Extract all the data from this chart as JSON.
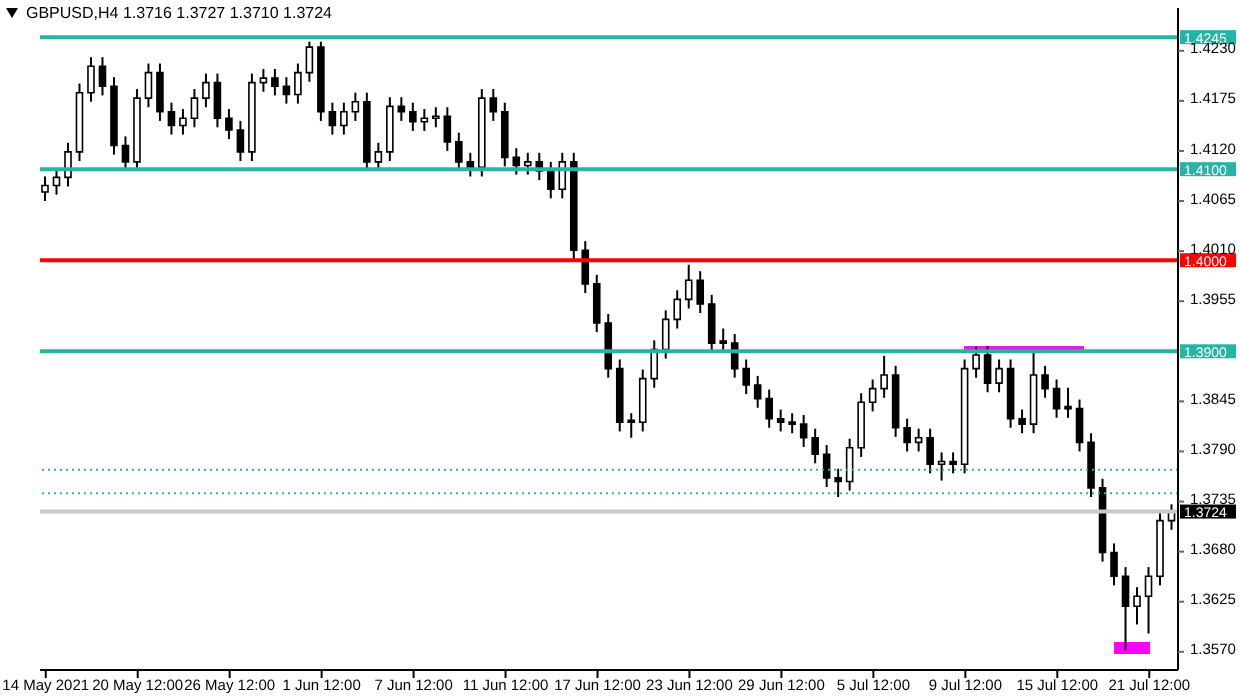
{
  "chart_data": {
    "type": "candlestick",
    "title": "GBPUSD,H4  1.3716 1.3727 1.3710 1.3724",
    "color": "#000000",
    "categories": [
      "14 May 2021",
      null,
      null,
      null,
      null,
      null,
      null,
      null,
      "20 May 12:00",
      null,
      null,
      null,
      null,
      null,
      null,
      null,
      "26 May 12:00",
      null,
      null,
      null,
      null,
      null,
      null,
      null,
      "1 Jun 12:00",
      null,
      null,
      null,
      null,
      null,
      null,
      null,
      "7 Jun 12:00",
      null,
      null,
      null,
      null,
      null,
      null,
      null,
      "11 Jun 12:00",
      null,
      null,
      null,
      null,
      null,
      null,
      null,
      "17 Jun 12:00",
      null,
      null,
      null,
      null,
      null,
      null,
      null,
      "23 Jun 12:00",
      null,
      null,
      null,
      null,
      null,
      null,
      null,
      "29 Jun 12:00",
      null,
      null,
      null,
      null,
      null,
      null,
      null,
      "5 Jul 12:00",
      null,
      null,
      null,
      null,
      null,
      null,
      null,
      "9 Jul 12:00",
      null,
      null,
      null,
      null,
      null,
      null,
      null,
      "15 Jul 12:00",
      null,
      null,
      null,
      null,
      null,
      null,
      null,
      "21 Jul 12:00",
      null,
      null
    ],
    "ohlc": [
      [
        1.4075,
        1.4092,
        1.4065,
        1.4082
      ],
      [
        1.4082,
        1.4101,
        1.4072,
        1.4091
      ],
      [
        1.4091,
        1.4129,
        1.4081,
        1.4119
      ],
      [
        1.4119,
        1.4194,
        1.4109,
        1.4184
      ],
      [
        1.4184,
        1.4223,
        1.4174,
        1.4213
      ],
      [
        1.4213,
        1.4223,
        1.4181,
        1.4191
      ],
      [
        1.4191,
        1.4201,
        1.4116,
        1.4126
      ],
      [
        1.4126,
        1.4136,
        1.4098,
        1.4108
      ],
      [
        1.4108,
        1.4188,
        1.4098,
        1.4178
      ],
      [
        1.4178,
        1.4216,
        1.4168,
        1.4206
      ],
      [
        1.4206,
        1.4216,
        1.4153,
        1.4163
      ],
      [
        1.4163,
        1.4173,
        1.4138,
        1.4148
      ],
      [
        1.4148,
        1.4166,
        1.4138,
        1.4156
      ],
      [
        1.4156,
        1.4188,
        1.4146,
        1.4178
      ],
      [
        1.4178,
        1.4205,
        1.4168,
        1.4195
      ],
      [
        1.4195,
        1.4205,
        1.4146,
        1.4156
      ],
      [
        1.4156,
        1.4166,
        1.4133,
        1.4143
      ],
      [
        1.4143,
        1.4153,
        1.4109,
        1.4119
      ],
      [
        1.4119,
        1.4205,
        1.4109,
        1.4195
      ],
      [
        1.4195,
        1.421,
        1.4185,
        1.42
      ],
      [
        1.42,
        1.421,
        1.4181,
        1.4191
      ],
      [
        1.4191,
        1.4201,
        1.4172,
        1.4182
      ],
      [
        1.4182,
        1.4216,
        1.4172,
        1.4206
      ],
      [
        1.4206,
        1.424,
        1.4196,
        1.4234
      ],
      [
        1.4234,
        1.424,
        1.4153,
        1.4163
      ],
      [
        1.4163,
        1.4173,
        1.4138,
        1.4148
      ],
      [
        1.4148,
        1.4173,
        1.4138,
        1.4163
      ],
      [
        1.4163,
        1.4184,
        1.4153,
        1.4174
      ],
      [
        1.4174,
        1.4184,
        1.4098,
        1.4108
      ],
      [
        1.4108,
        1.4129,
        1.4098,
        1.4119
      ],
      [
        1.4119,
        1.4179,
        1.4109,
        1.4169
      ],
      [
        1.4169,
        1.4179,
        1.4153,
        1.4163
      ],
      [
        1.4163,
        1.4173,
        1.4142,
        1.4152
      ],
      [
        1.4152,
        1.4166,
        1.4142,
        1.4156
      ],
      [
        1.4156,
        1.4168,
        1.4146,
        1.4158
      ],
      [
        1.4158,
        1.4168,
        1.412,
        1.413
      ],
      [
        1.413,
        1.414,
        1.4098,
        1.4108
      ],
      [
        1.4108,
        1.4118,
        1.4092,
        1.4102
      ],
      [
        1.4102,
        1.4188,
        1.4092,
        1.4178
      ],
      [
        1.4178,
        1.4188,
        1.4153,
        1.4163
      ],
      [
        1.4163,
        1.4173,
        1.4103,
        1.4113
      ],
      [
        1.4113,
        1.4123,
        1.4094,
        1.4104
      ],
      [
        1.4104,
        1.4118,
        1.4094,
        1.4108
      ],
      [
        1.4108,
        1.4118,
        1.4088,
        1.4098
      ],
      [
        1.4098,
        1.4108,
        1.4068,
        1.4078
      ],
      [
        1.4078,
        1.4118,
        1.4068,
        1.4108
      ],
      [
        1.4108,
        1.4118,
        1.4001,
        1.4011
      ],
      [
        1.4011,
        1.4021,
        1.3964,
        1.3974
      ],
      [
        1.3974,
        1.3984,
        1.3921,
        1.3931
      ],
      [
        1.3931,
        1.3941,
        1.3871,
        1.3881
      ],
      [
        1.3881,
        1.3891,
        1.3812,
        1.3822
      ],
      [
        1.3822,
        1.3832,
        1.3805,
        1.3822
      ],
      [
        1.3822,
        1.388,
        1.3812,
        1.387
      ],
      [
        1.387,
        1.3912,
        1.386,
        1.3902
      ],
      [
        1.3902,
        1.3945,
        1.3892,
        1.3935
      ],
      [
        1.3935,
        1.3967,
        1.3925,
        1.3957
      ],
      [
        1.3957,
        1.3995,
        1.3947,
        1.3978
      ],
      [
        1.3978,
        1.3988,
        1.3942,
        1.3952
      ],
      [
        1.3952,
        1.3962,
        1.3899,
        1.3909
      ],
      [
        1.3909,
        1.3925,
        1.3899,
        1.3909
      ],
      [
        1.3909,
        1.3919,
        1.3871,
        1.3881
      ],
      [
        1.3881,
        1.3891,
        1.3853,
        1.3863
      ],
      [
        1.3863,
        1.3873,
        1.3838,
        1.3848
      ],
      [
        1.3848,
        1.3858,
        1.3816,
        1.3826
      ],
      [
        1.3826,
        1.3836,
        1.3812,
        1.3822
      ],
      [
        1.3822,
        1.3832,
        1.381,
        1.382
      ],
      [
        1.382,
        1.383,
        1.3795,
        1.3805
      ],
      [
        1.3805,
        1.3815,
        1.3777,
        1.3787
      ],
      [
        1.3787,
        1.3797,
        1.3751,
        1.3761
      ],
      [
        1.3761,
        1.3771,
        1.374,
        1.3757
      ],
      [
        1.3757,
        1.3804,
        1.3747,
        1.3794
      ],
      [
        1.3794,
        1.3854,
        1.3784,
        1.3844
      ],
      [
        1.3844,
        1.3869,
        1.3834,
        1.3859
      ],
      [
        1.3859,
        1.3895,
        1.3849,
        1.3874
      ],
      [
        1.3874,
        1.3884,
        1.3806,
        1.3816
      ],
      [
        1.3816,
        1.3826,
        1.379,
        1.38
      ],
      [
        1.38,
        1.3815,
        1.379,
        1.3805
      ],
      [
        1.3805,
        1.3815,
        1.3766,
        1.3776
      ],
      [
        1.3776,
        1.3789,
        1.3758,
        1.3779
      ],
      [
        1.3779,
        1.3789,
        1.3766,
        1.3776
      ],
      [
        1.3776,
        1.3891,
        1.3766,
        1.3881
      ],
      [
        1.3881,
        1.3905,
        1.3871,
        1.3896
      ],
      [
        1.3896,
        1.3906,
        1.3855,
        1.3865
      ],
      [
        1.3865,
        1.3891,
        1.3855,
        1.3881
      ],
      [
        1.3881,
        1.3891,
        1.3816,
        1.3826
      ],
      [
        1.3826,
        1.3836,
        1.381,
        1.382
      ],
      [
        1.382,
        1.39,
        1.381,
        1.3874
      ],
      [
        1.3874,
        1.3884,
        1.3849,
        1.3859
      ],
      [
        1.3859,
        1.3869,
        1.3827,
        1.3837
      ],
      [
        1.3837,
        1.386,
        1.3827,
        1.3837
      ],
      [
        1.3837,
        1.3847,
        1.379,
        1.38
      ],
      [
        1.38,
        1.381,
        1.374,
        1.375
      ],
      [
        1.375,
        1.376,
        1.3669,
        1.3679
      ],
      [
        1.3679,
        1.3689,
        1.3643,
        1.3653
      ],
      [
        1.3653,
        1.3663,
        1.3572,
        1.362
      ],
      [
        1.362,
        1.3641,
        1.36,
        1.3631
      ],
      [
        1.3631,
        1.3663,
        1.359,
        1.3653
      ],
      [
        1.3653,
        1.3724,
        1.3643,
        1.3714
      ],
      [
        1.3714,
        1.3732,
        1.3704,
        1.3724
      ]
    ],
    "ylim": [
      1.355,
      1.4277
    ],
    "yticks": [
      {
        "value": 1.423,
        "label": "1.4230"
      },
      1.4175,
      {
        "value": 1.412,
        "label": "1.4120"
      },
      1.4065,
      {
        "value": 1.401,
        "label": "1.4010"
      },
      1.3955,
      1.3845,
      {
        "value": 1.379,
        "label": "1.3790"
      },
      1.3735,
      {
        "value": 1.368,
        "label": "1.3680"
      },
      1.3625,
      {
        "value": 1.357,
        "label": "1.3570"
      }
    ],
    "ref_lines": [
      {
        "axis": "y",
        "value": 1.4245,
        "label": "1.4245",
        "color": "#26b5a5"
      },
      {
        "axis": "y",
        "value": 1.41,
        "label": "1.4100",
        "color": "#26b5a5"
      },
      {
        "axis": "y",
        "value": 1.4,
        "label": "1.4000",
        "color": "#ff0000"
      },
      {
        "axis": "y",
        "value": 1.39,
        "label": "1.3900",
        "color": "#26b5a5"
      },
      {
        "axis": "y",
        "value": 1.377,
        "color": "#26b5a5",
        "line_style": "dotted"
      },
      {
        "axis": "y",
        "value": 1.3744,
        "color": "#26b5a5",
        "line_style": "dotted"
      },
      {
        "axis": "y",
        "value": 1.3724,
        "label": "1.3724",
        "color": "#c8c8c8"
      }
    ]
  }
}
